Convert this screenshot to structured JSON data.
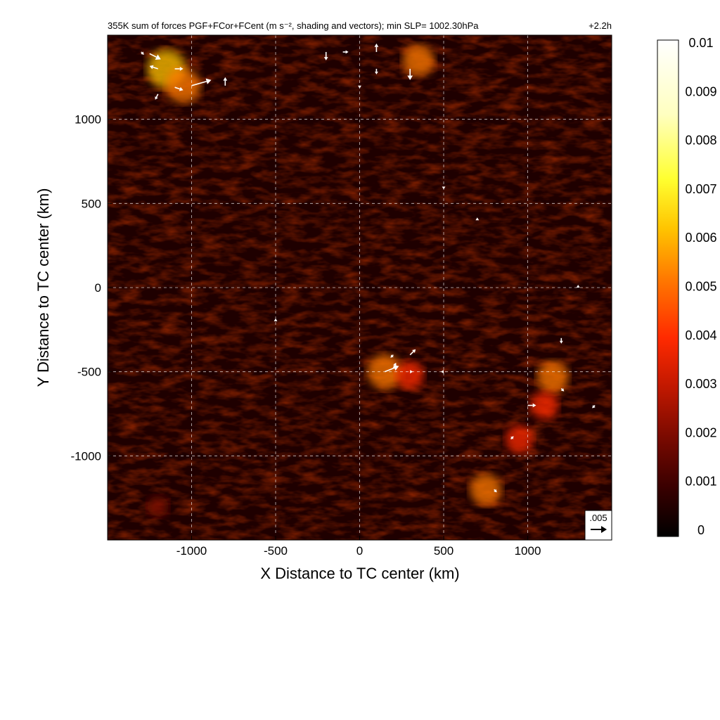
{
  "chart_data": {
    "type": "heatmap",
    "title": "355K sum of forces PGF+FCor+FCent (m s⁻², shading and vectors); min SLP= 1002.30hPa",
    "time_label": "+2.2h",
    "xlabel": "X Distance to TC center (km)",
    "ylabel": "Y Distance to TC center (km)",
    "xlim": [
      -1500,
      1500
    ],
    "ylim": [
      -1500,
      1500
    ],
    "x_ticks": [
      -1000,
      -500,
      0,
      500,
      1000
    ],
    "y_ticks": [
      1000,
      500,
      0,
      -500,
      -1000
    ],
    "x_tick_labels": [
      "-1000",
      "-500",
      "0",
      "500",
      "1000"
    ],
    "y_tick_labels": [
      "1000",
      "500",
      "0",
      "-500",
      "-1000"
    ],
    "grid": true,
    "grid_style": "dashed",
    "colorbar": {
      "min": 0,
      "max": 0.01,
      "labels": [
        "0.01",
        "0.009",
        "0.008",
        "0.007",
        "0.006",
        "0.005",
        "0.004",
        "0.003",
        "0.002",
        "0.001",
        "0"
      ],
      "colormap": [
        "#000000",
        "#3a0000",
        "#7a0a00",
        "#c01800",
        "#ff2a00",
        "#ff7a00",
        "#ffc400",
        "#ffff30",
        "#ffffc0",
        "#ffffff"
      ]
    },
    "reference_vector": {
      "label": ".005",
      "magnitude": 0.005
    },
    "hotspots": [
      {
        "x": -1150,
        "y": 1300,
        "value": 0.007
      },
      {
        "x": -1050,
        "y": 1200,
        "value": 0.006
      },
      {
        "x": 350,
        "y": 1350,
        "value": 0.005
      },
      {
        "x": 150,
        "y": -500,
        "value": 0.006
      },
      {
        "x": 300,
        "y": -520,
        "value": 0.004
      },
      {
        "x": 1150,
        "y": -530,
        "value": 0.005
      },
      {
        "x": 1100,
        "y": -700,
        "value": 0.004
      },
      {
        "x": 950,
        "y": -900,
        "value": 0.004
      },
      {
        "x": 750,
        "y": -1200,
        "value": 0.005
      },
      {
        "x": -1200,
        "y": -1300,
        "value": 0.002
      }
    ],
    "vectors": [
      {
        "x": -1300,
        "y": 1400,
        "u": 0.001,
        "v": -0.001
      },
      {
        "x": -1250,
        "y": 1390,
        "u": 0.004,
        "v": -0.002
      },
      {
        "x": -1200,
        "y": 1300,
        "u": -0.003,
        "v": 0.001
      },
      {
        "x": -1100,
        "y": 1300,
        "u": 0.003,
        "v": 0.0
      },
      {
        "x": -1000,
        "y": 1200,
        "u": 0.007,
        "v": 0.002
      },
      {
        "x": -1100,
        "y": 1190,
        "u": 0.003,
        "v": -0.001
      },
      {
        "x": -800,
        "y": 1200,
        "u": 0.0,
        "v": 0.003
      },
      {
        "x": -1200,
        "y": 1150,
        "u": -0.001,
        "v": -0.002
      },
      {
        "x": -200,
        "y": 1400,
        "u": 0.0,
        "v": -0.003
      },
      {
        "x": -100,
        "y": 1400,
        "u": 0.002,
        "v": 0.0
      },
      {
        "x": 100,
        "y": 1400,
        "u": 0.0,
        "v": 0.003
      },
      {
        "x": 300,
        "y": 1300,
        "u": 0.0,
        "v": -0.004
      },
      {
        "x": 100,
        "y": 1300,
        "u": 0.0,
        "v": -0.002
      },
      {
        "x": 0,
        "y": 1200,
        "u": 0.0,
        "v": -0.001
      },
      {
        "x": 150,
        "y": -500,
        "u": 0.005,
        "v": 0.002
      },
      {
        "x": 200,
        "y": -400,
        "u": -0.001,
        "v": -0.001
      },
      {
        "x": 300,
        "y": -400,
        "u": 0.002,
        "v": 0.002
      },
      {
        "x": 200,
        "y": -480,
        "u": 0.001,
        "v": 0.002
      },
      {
        "x": 300,
        "y": -500,
        "u": 0.001,
        "v": 0.0
      },
      {
        "x": 500,
        "y": -500,
        "u": -0.001,
        "v": 0.0
      },
      {
        "x": 1000,
        "y": -700,
        "u": 0.003,
        "v": 0.0
      },
      {
        "x": 1200,
        "y": -300,
        "u": 0.0,
        "v": -0.002
      },
      {
        "x": 1300,
        "y": 0,
        "u": 0.0,
        "v": 0.001
      },
      {
        "x": 900,
        "y": -900,
        "u": 0.001,
        "v": 0.001
      },
      {
        "x": 800,
        "y": -1200,
        "u": 0.001,
        "v": -0.001
      },
      {
        "x": -500,
        "y": -200,
        "u": 0.0,
        "v": 0.001
      },
      {
        "x": 700,
        "y": 400,
        "u": 0.0,
        "v": 0.001
      },
      {
        "x": 500,
        "y": 600,
        "u": 0.0,
        "v": -0.001
      },
      {
        "x": 1200,
        "y": -600,
        "u": 0.001,
        "v": -0.001
      },
      {
        "x": 1400,
        "y": -700,
        "u": -0.001,
        "v": -0.001
      }
    ]
  }
}
